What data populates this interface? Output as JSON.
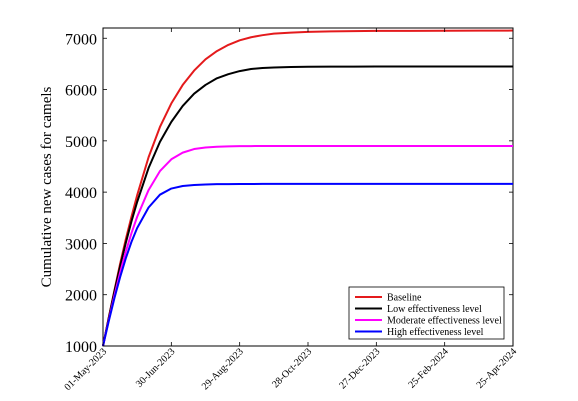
{
  "chart_data": {
    "type": "line",
    "title": "",
    "xlabel": "",
    "ylabel": "Cumulative new cases for camels",
    "x_tick_labels": [
      "01-May-2023",
      "30-Jun-2023",
      "29-Aug-2023",
      "28-Oct-2023",
      "27-Dec-2023",
      "25-Feb-2024",
      "25-Apr-2024"
    ],
    "y_ticks": [
      1000,
      2000,
      3000,
      4000,
      5000,
      6000,
      7000
    ],
    "ylim": [
      1000,
      7200
    ],
    "x_day_max": 360,
    "grid": false,
    "legend_position": "bottom-right",
    "series": [
      {
        "name": "Baseline",
        "color": "#e41a1c",
        "x": [
          0,
          5,
          10,
          15,
          20,
          25,
          30,
          40,
          50,
          60,
          70,
          80,
          90,
          100,
          110,
          120,
          130,
          140,
          150,
          165,
          180,
          200,
          220,
          240,
          270,
          300,
          330,
          360
        ],
        "values": [
          1000,
          1550,
          2080,
          2600,
          3080,
          3520,
          3940,
          4680,
          5270,
          5730,
          6090,
          6370,
          6590,
          6750,
          6870,
          6960,
          7020,
          7060,
          7090,
          7110,
          7125,
          7135,
          7140,
          7143,
          7145,
          7147,
          7148,
          7150
        ]
      },
      {
        "name": "Low effectiveness level",
        "color": "#000000",
        "x": [
          0,
          5,
          10,
          15,
          20,
          25,
          30,
          40,
          50,
          60,
          70,
          80,
          90,
          100,
          110,
          120,
          130,
          140,
          150,
          165,
          180,
          200,
          220,
          240,
          270,
          300,
          330,
          360
        ],
        "values": [
          1000,
          1540,
          2060,
          2550,
          3010,
          3430,
          3810,
          4470,
          4980,
          5370,
          5680,
          5920,
          6090,
          6220,
          6300,
          6360,
          6400,
          6420,
          6430,
          6440,
          6445,
          6447,
          6448,
          6449,
          6450,
          6450,
          6450,
          6450
        ]
      },
      {
        "name": "Moderate effectiveness level",
        "color": "#ff00ff",
        "x": [
          0,
          5,
          10,
          15,
          20,
          25,
          30,
          40,
          50,
          60,
          70,
          80,
          90,
          100,
          110,
          120,
          130,
          140,
          150,
          165,
          180,
          200,
          220,
          240,
          270,
          300,
          330,
          360
        ],
        "values": [
          1000,
          1500,
          1980,
          2430,
          2840,
          3200,
          3520,
          4040,
          4410,
          4640,
          4770,
          4840,
          4870,
          4885,
          4892,
          4896,
          4898,
          4899,
          4900,
          4900,
          4900,
          4900,
          4900,
          4900,
          4900,
          4900,
          4900,
          4900
        ]
      },
      {
        "name": "High effectiveness level",
        "color": "#0000ff",
        "x": [
          0,
          5,
          10,
          15,
          20,
          25,
          30,
          40,
          50,
          60,
          70,
          80,
          90,
          100,
          110,
          120,
          130,
          140,
          150,
          165,
          180,
          200,
          220,
          240,
          270,
          300,
          330,
          360
        ],
        "values": [
          1000,
          1480,
          1930,
          2340,
          2710,
          3030,
          3300,
          3700,
          3950,
          4070,
          4120,
          4140,
          4150,
          4155,
          4157,
          4158,
          4159,
          4160,
          4160,
          4160,
          4160,
          4160,
          4160,
          4160,
          4160,
          4160,
          4160,
          4160
        ]
      }
    ]
  }
}
